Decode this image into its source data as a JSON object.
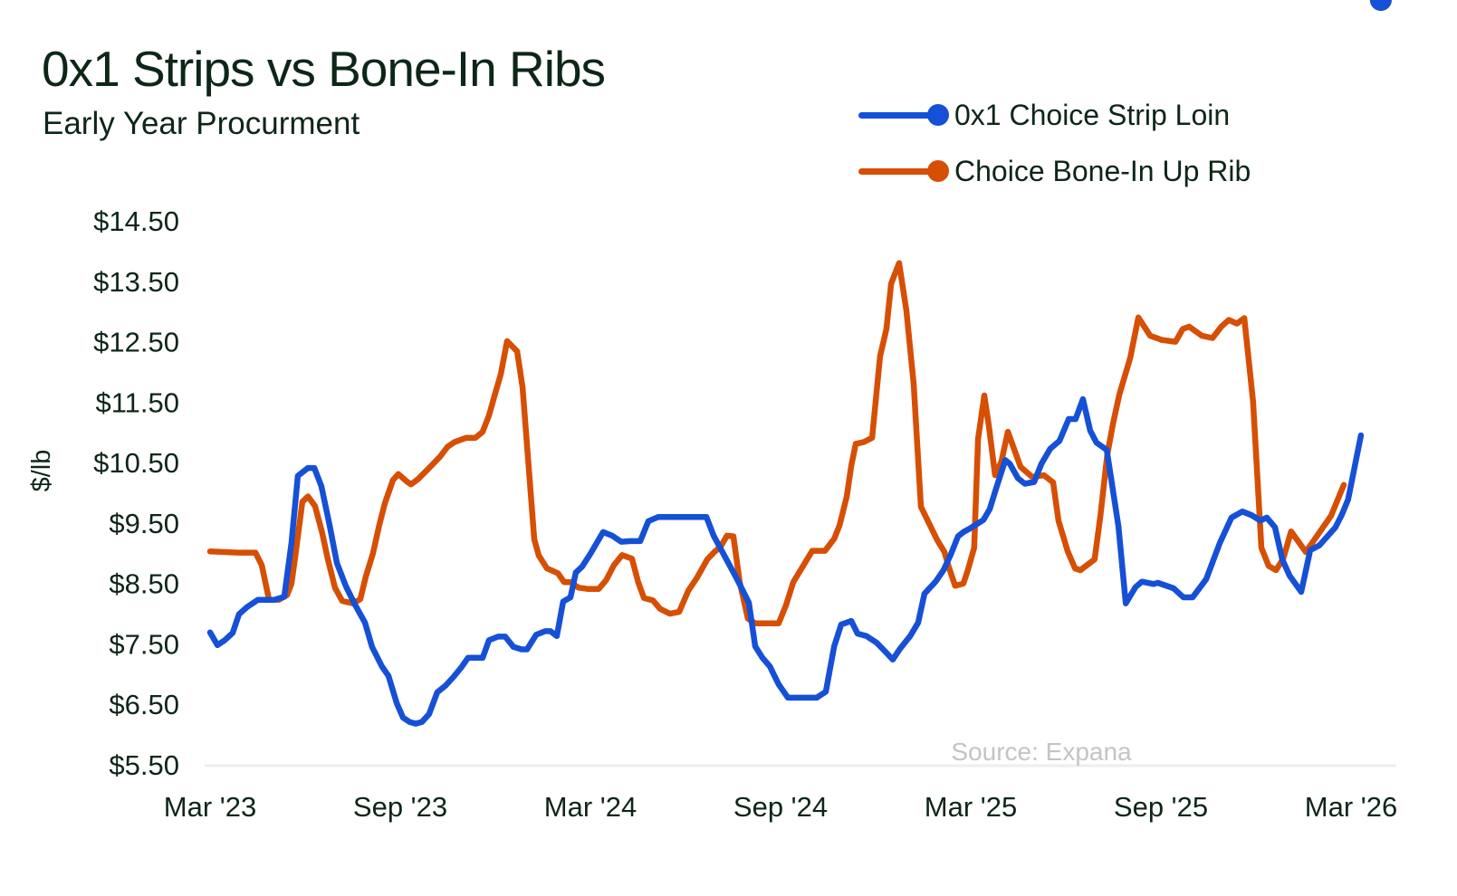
{
  "header": {
    "title": "0x1 Strips vs Bone-In Ribs",
    "subtitle": "Early Year Procurment"
  },
  "legend": [
    {
      "label": "0x1 Choice Strip Loin",
      "color": "#1550d6"
    },
    {
      "label": "Choice Bone-In Up Rib",
      "color": "#d64f04"
    }
  ],
  "source": "Source: Expana",
  "colors": {
    "strip": "#1550d6",
    "rib": "#d64f04",
    "text": "#0d2618",
    "axis_line": "#eeeeee",
    "source": "#c4c4c4"
  },
  "chart_data": {
    "type": "line",
    "title": "0x1 Strips vs Bone-In Ribs",
    "subtitle": "Early Year Procurment",
    "xlabel": "",
    "ylabel": "$/lb",
    "x_unit": "months since Mar 2023",
    "xlim": [
      0,
      36.8
    ],
    "ylim": [
      5.5,
      14.5
    ],
    "yticks": [
      5.5,
      6.5,
      7.5,
      8.5,
      9.5,
      10.5,
      11.5,
      12.5,
      13.5,
      14.5
    ],
    "ytick_labels": [
      "$5.50",
      "$6.50",
      "$7.50",
      "$8.50",
      "$9.50",
      "$10.50",
      "$11.50",
      "$12.50",
      "$13.50",
      "$14.50"
    ],
    "xticks": [
      0,
      6,
      12,
      18,
      24,
      30,
      36
    ],
    "xtick_labels": [
      "Mar '23",
      "Sep '23",
      "Mar '24",
      "Sep '24",
      "Mar '25",
      "Sep '25",
      "Mar '26"
    ],
    "grid": false,
    "legend_position": "top-right",
    "annotations": [
      "Source: Expana"
    ],
    "series": [
      {
        "name": "0x1 Choice Strip Loin",
        "color": "#1550d6",
        "end_marker": true,
        "t": [
          0,
          0.23,
          0.46,
          0.71,
          0.91,
          1.17,
          1.51,
          2.03,
          2.34,
          2.57,
          2.77,
          3.09,
          3.29,
          3.51,
          3.77,
          4.0,
          4.29,
          4.57,
          4.89,
          5.11,
          5.43,
          5.63,
          5.89,
          6.09,
          6.29,
          6.49,
          6.69,
          6.91,
          7.17,
          7.43,
          7.69,
          7.94,
          8.14,
          8.43,
          8.6,
          8.8,
          9.09,
          9.31,
          9.57,
          9.83,
          10.0,
          10.29,
          10.57,
          10.74,
          10.94,
          11.14,
          11.37,
          11.54,
          11.74,
          12.0,
          12.2,
          12.4,
          12.69,
          12.97,
          13.26,
          13.57,
          13.83,
          14.14,
          15.66,
          15.89,
          16.63,
          17.0,
          17.2,
          17.43,
          17.66,
          17.94,
          18.23,
          19.14,
          19.43,
          19.69,
          19.91,
          20.23,
          20.43,
          20.71,
          21.03,
          21.31,
          21.54,
          21.77,
          22.09,
          22.34,
          22.54,
          22.89,
          23.14,
          23.37,
          23.6,
          23.77,
          23.94,
          24.4,
          24.6,
          24.8,
          25.09,
          25.23,
          25.49,
          25.71,
          26.0,
          26.23,
          26.51,
          26.8,
          27.09,
          27.31,
          27.54,
          27.77,
          27.97,
          28.29,
          28.66,
          28.89,
          29.2,
          29.4,
          29.77,
          29.91,
          30.4,
          30.71,
          31.0,
          31.43,
          31.86,
          32.23,
          32.57,
          32.86,
          33.14,
          33.34,
          33.6,
          33.83,
          34.06,
          34.43,
          34.71,
          35.0,
          35.51,
          35.71,
          35.91,
          36.31,
          36.51,
          36.94
        ],
        "values": [
          7.69,
          7.48,
          7.56,
          7.68,
          7.99,
          8.11,
          8.23,
          8.23,
          8.28,
          9.17,
          10.28,
          10.41,
          10.41,
          10.11,
          9.47,
          8.84,
          8.45,
          8.15,
          7.85,
          7.45,
          7.12,
          6.97,
          6.52,
          6.28,
          6.21,
          6.18,
          6.21,
          6.34,
          6.7,
          6.81,
          6.96,
          7.12,
          7.27,
          7.27,
          7.27,
          7.56,
          7.62,
          7.62,
          7.45,
          7.41,
          7.41,
          7.65,
          7.71,
          7.71,
          7.63,
          8.2,
          8.27,
          8.68,
          8.78,
          8.99,
          9.17,
          9.35,
          9.29,
          9.19,
          9.2,
          9.2,
          9.53,
          9.6,
          9.6,
          9.29,
          8.57,
          8.18,
          7.46,
          7.27,
          7.13,
          6.83,
          6.61,
          6.61,
          6.71,
          7.46,
          7.82,
          7.88,
          7.67,
          7.63,
          7.52,
          7.37,
          7.24,
          7.42,
          7.63,
          7.85,
          8.33,
          8.53,
          8.72,
          8.98,
          9.28,
          9.35,
          9.4,
          9.55,
          9.73,
          10.07,
          10.54,
          10.48,
          10.24,
          10.15,
          10.18,
          10.48,
          10.73,
          10.86,
          11.22,
          11.22,
          11.55,
          11.03,
          10.83,
          10.71,
          9.45,
          8.17,
          8.44,
          8.53,
          8.49,
          8.51,
          8.42,
          8.27,
          8.27,
          8.57,
          9.17,
          9.59,
          9.69,
          9.63,
          9.54,
          9.59,
          9.43,
          8.9,
          8.63,
          8.36,
          9.05,
          9.13,
          9.43,
          9.64,
          9.89,
          10.95
        ]
      },
      {
        "name": "Choice Bone-In Up Rib",
        "color": "#d64f04",
        "end_marker": true,
        "t": [
          0,
          0.89,
          1.43,
          1.63,
          1.86,
          2.17,
          2.43,
          2.57,
          2.69,
          2.91,
          3.09,
          3.31,
          3.54,
          3.71,
          3.94,
          4.17,
          4.51,
          4.74,
          4.91,
          5.14,
          5.34,
          5.51,
          5.77,
          5.94,
          6.2,
          6.34,
          6.57,
          6.91,
          7.26,
          7.49,
          7.71,
          8.09,
          8.37,
          8.6,
          8.8,
          8.97,
          9.17,
          9.37,
          9.69,
          9.86,
          10.23,
          10.37,
          10.63,
          10.97,
          11.17,
          11.37,
          11.63,
          11.91,
          12.26,
          12.49,
          12.74,
          13.0,
          13.31,
          13.51,
          13.69,
          13.97,
          14.2,
          14.51,
          14.8,
          15.09,
          15.37,
          15.69,
          15.91,
          16.11,
          16.31,
          16.51,
          16.71,
          16.97,
          17.2,
          17.94,
          18.17,
          18.4,
          18.71,
          19.0,
          19.4,
          19.69,
          19.86,
          20.09,
          20.23,
          20.37,
          20.63,
          20.89,
          21.14,
          21.34,
          21.49,
          21.74,
          21.97,
          22.2,
          22.43,
          22.71,
          22.94,
          23.17,
          23.31,
          23.51,
          23.77,
          23.91,
          24.11,
          24.23,
          24.43,
          24.57,
          24.77,
          24.97,
          25.17,
          25.57,
          25.94,
          26.31,
          26.6,
          26.77,
          27.06,
          27.29,
          27.46,
          27.91,
          28.09,
          28.31,
          28.49,
          28.69,
          29.03,
          29.29,
          29.66,
          30.03,
          30.46,
          30.69,
          30.89,
          31.29,
          31.63,
          31.91,
          32.14,
          32.4,
          32.63,
          32.91,
          33.17,
          33.4,
          33.63,
          33.86,
          34.11,
          34.57,
          34.97,
          35.37,
          35.77,
          36.17,
          36.49,
          36.94
        ],
        "values": [
          9.03,
          9.01,
          9.01,
          8.8,
          8.23,
          8.23,
          8.31,
          8.5,
          8.95,
          9.85,
          9.94,
          9.78,
          9.33,
          8.91,
          8.43,
          8.21,
          8.17,
          8.24,
          8.61,
          9.0,
          9.47,
          9.82,
          10.21,
          10.31,
          10.19,
          10.14,
          10.23,
          10.41,
          10.6,
          10.76,
          10.84,
          10.91,
          10.91,
          11.01,
          11.28,
          11.6,
          11.96,
          12.51,
          12.34,
          11.74,
          9.23,
          8.96,
          8.75,
          8.67,
          8.52,
          8.52,
          8.43,
          8.41,
          8.41,
          8.55,
          8.8,
          8.97,
          8.91,
          8.52,
          8.26,
          8.22,
          8.08,
          8.0,
          8.03,
          8.38,
          8.6,
          8.9,
          9.02,
          9.11,
          9.29,
          9.28,
          8.52,
          7.92,
          7.84,
          7.84,
          8.14,
          8.52,
          8.79,
          9.04,
          9.04,
          9.24,
          9.46,
          9.94,
          10.45,
          10.81,
          10.84,
          10.91,
          12.26,
          12.71,
          13.46,
          13.8,
          13.02,
          11.8,
          9.77,
          9.47,
          9.22,
          9.02,
          8.77,
          8.46,
          8.5,
          8.72,
          9.09,
          10.89,
          11.61,
          11.11,
          10.29,
          10.52,
          11.01,
          10.43,
          10.26,
          10.29,
          10.17,
          9.54,
          9.03,
          8.75,
          8.72,
          8.9,
          9.62,
          10.63,
          11.15,
          11.63,
          12.23,
          12.9,
          12.6,
          12.53,
          12.5,
          12.71,
          12.75,
          12.6,
          12.56,
          12.75,
          12.86,
          12.8,
          12.89,
          11.51,
          9.09,
          8.79,
          8.72,
          8.91,
          9.36,
          9.02,
          9.32,
          9.62,
          10.13
        ]
      }
    ]
  }
}
